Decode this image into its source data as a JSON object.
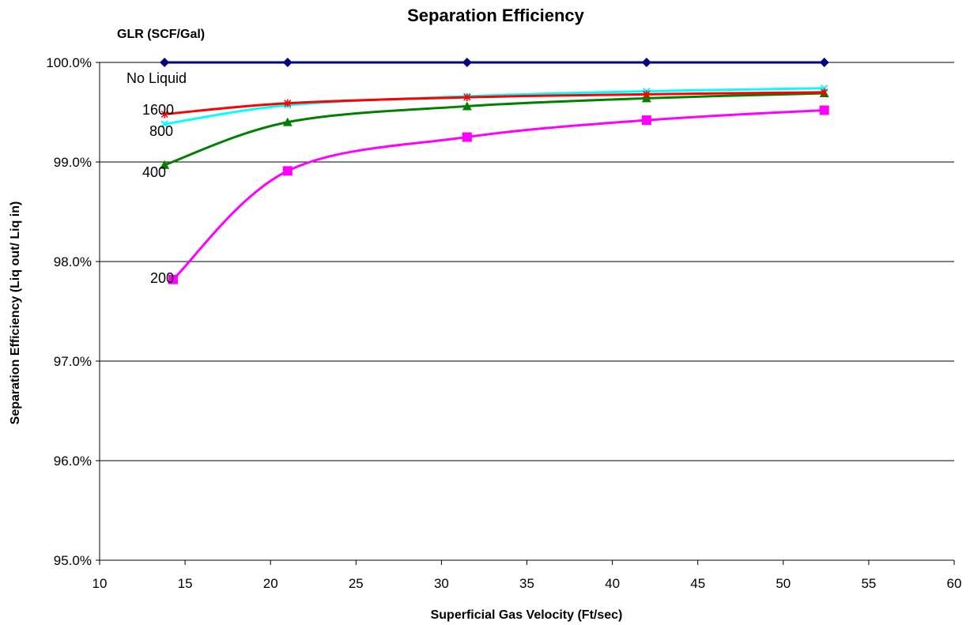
{
  "chart_data": {
    "type": "line",
    "title": "Separation Efficiency",
    "legend_title": "GLR (SCF/Gal)",
    "xlabel": "Superficial Gas Velocity (Ft/sec)",
    "ylabel": "Separation Efficiency (Liq out/ Liq in)",
    "xlim": [
      10,
      60
    ],
    "ylim": [
      95.0,
      100.0
    ],
    "x_ticks": [
      "10",
      "15",
      "20",
      "25",
      "30",
      "35",
      "40",
      "45",
      "50",
      "55",
      "60"
    ],
    "y_ticks": [
      "95.0%",
      "96.0%",
      "97.0%",
      "98.0%",
      "99.0%",
      "100.0%"
    ],
    "grid": "horizontal",
    "legend": "inline labels",
    "series": [
      {
        "name": "No Liquid",
        "color": "#000080",
        "marker": "diamond",
        "x": [
          13.8,
          21.0,
          31.5,
          42.0,
          52.4
        ],
        "y": [
          100.0,
          100.0,
          100.0,
          100.0,
          100.0
        ]
      },
      {
        "name": "1600",
        "color": "#ff0000",
        "marker": "star",
        "x": [
          13.8,
          21.0,
          31.5,
          42.0,
          52.4
        ],
        "y": [
          99.48,
          99.59,
          99.65,
          99.68,
          99.7
        ]
      },
      {
        "name": "800",
        "color": "#00ffff",
        "marker": "x",
        "x": [
          13.8,
          21.0,
          31.5,
          42.0,
          52.4
        ],
        "y": [
          99.38,
          99.57,
          99.66,
          99.71,
          99.74
        ]
      },
      {
        "name": "400",
        "color": "#008000",
        "marker": "triangle",
        "x": [
          13.8,
          21.0,
          31.5,
          42.0,
          52.4
        ],
        "y": [
          98.97,
          99.4,
          99.56,
          99.64,
          99.69
        ]
      },
      {
        "name": "200",
        "color": "#ff00ff",
        "marker": "square",
        "x": [
          14.3,
          21.0,
          31.5,
          42.0,
          52.4
        ],
        "y": [
          97.82,
          98.91,
          99.25,
          99.42,
          99.52
        ]
      }
    ]
  }
}
